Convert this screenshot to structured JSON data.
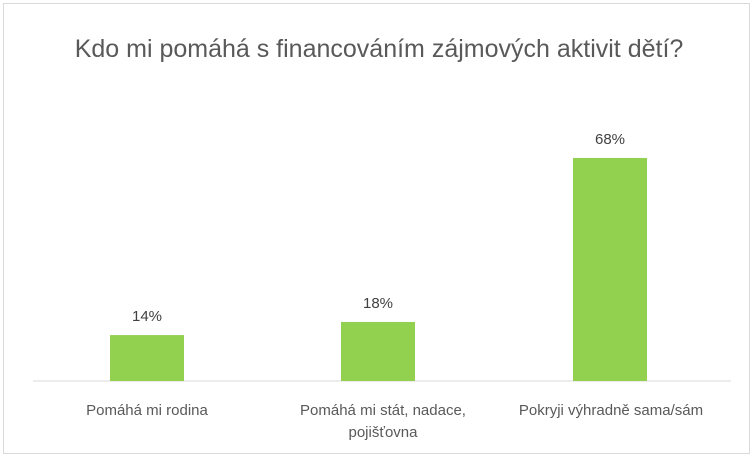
{
  "chart_data": {
    "type": "bar",
    "title": "Kdo mi pomáhá s financováním zájmových aktivit dětí?",
    "categories": [
      "Pomáhá mi rodina",
      "Pomáhá mi stát, nadace, pojišťovna",
      "Pokryji výhradně sama/sám"
    ],
    "values": [
      14,
      18,
      68
    ],
    "value_labels": [
      "14%",
      "18%",
      "68%"
    ],
    "unit": "%",
    "ylim": [
      0,
      80
    ],
    "grid": false,
    "legend": "none",
    "bar_color": "#92d050"
  }
}
